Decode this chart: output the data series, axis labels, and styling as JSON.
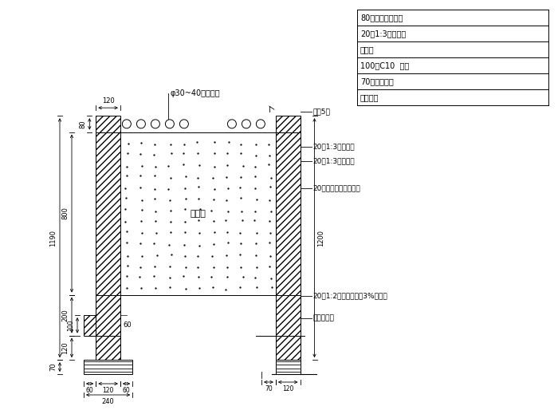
{
  "bg_color": "#ffffff",
  "line_color": "#000000",
  "annotations_top_right": [
    "80厚五莲花花岗岩",
    "20厚1:3水泥砂浆",
    "砖砌体",
    "100厚C10  垫层",
    "70厚碎石垫层",
    "素土夯实"
  ],
  "annotations_right": [
    "面防5层",
    "20厚1:3水泥砂浆",
    "20厚1:3水泥砂浆",
    "20厚五莲花花岗岩断面",
    "20厚1:2水泥砂浆内掺3%防水粉",
    "厚涵青断面"
  ],
  "pipe_label": "φ30~40卵石管铺",
  "fill_label": "填垫土",
  "dim_1190": "1190",
  "dim_800": "800",
  "dim_200": "200",
  "dim_120a": "120",
  "dim_70a": "70",
  "dim_100": "100",
  "dim_80": "80",
  "dim_60a": "60",
  "dim_120b": "120",
  "dim_60b": "60",
  "dim_240": "240",
  "dim_1200": "1200",
  "dim_70b": "70",
  "dim_120c": "120"
}
